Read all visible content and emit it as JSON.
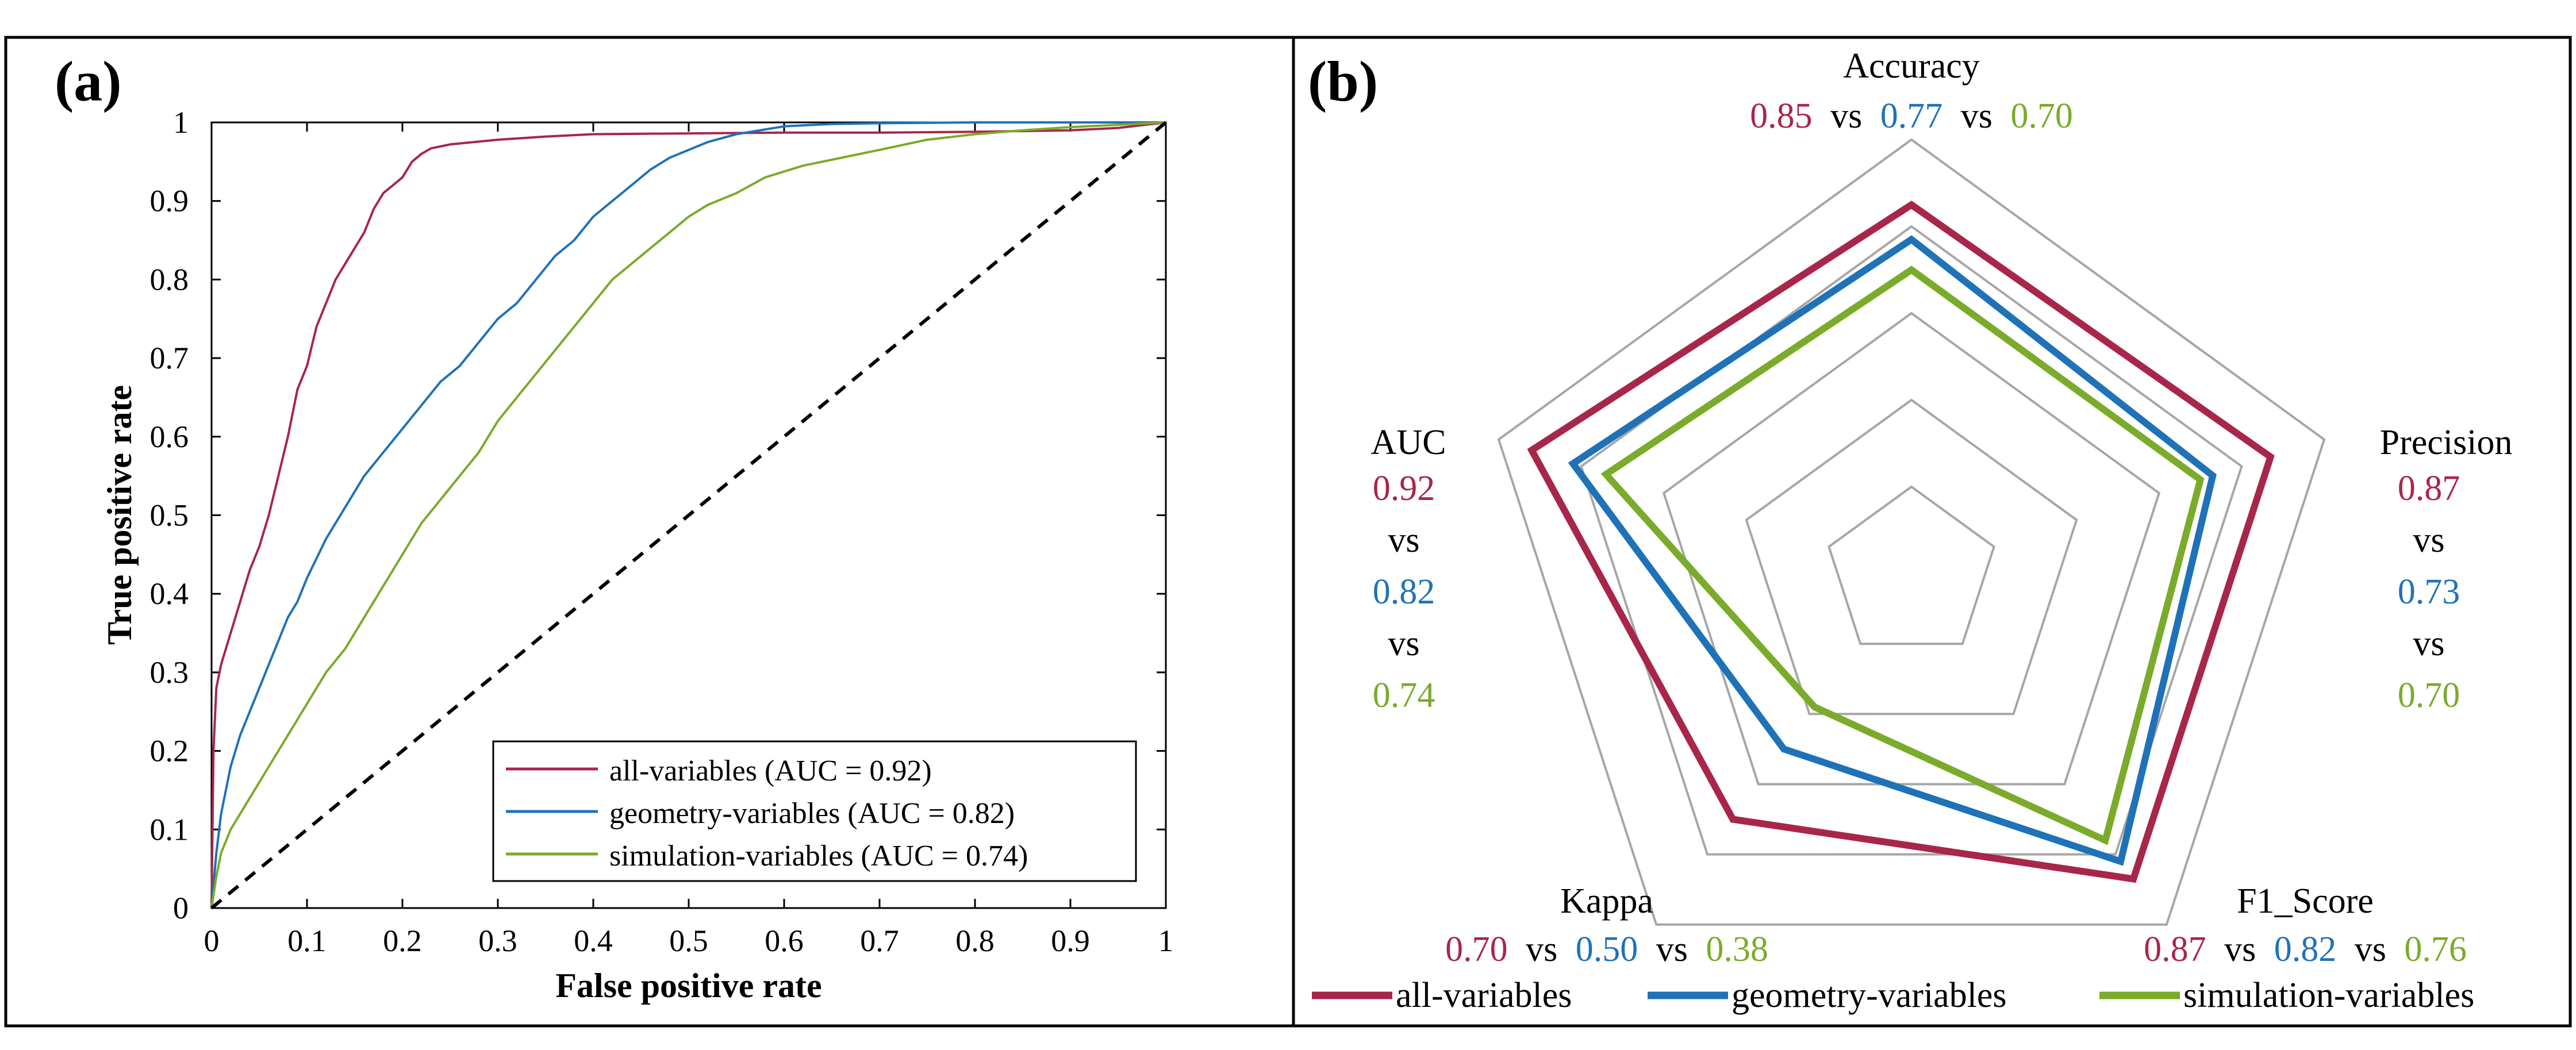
{
  "colors": {
    "all": "#a8264a",
    "geometry": "#1f72b8",
    "simulation": "#7aab2a",
    "diagonal": "#000000",
    "grid": "#a6a6a6"
  },
  "chart_data": [
    {
      "type": "line",
      "panel_label": "(a)",
      "xlabel": "False positive rate",
      "ylabel": "True positive rate",
      "xlim": [
        0,
        1
      ],
      "ylim": [
        0,
        1
      ],
      "x_ticks": [
        "0",
        "0.1",
        "0.2",
        "0.3",
        "0.4",
        "0.5",
        "0.6",
        "0.7",
        "0.8",
        "0.9",
        "1"
      ],
      "y_ticks": [
        "0",
        "0.1",
        "0.2",
        "0.3",
        "0.4",
        "0.5",
        "0.6",
        "0.7",
        "0.8",
        "0.9",
        "1"
      ],
      "legend": "bottom-right",
      "series": [
        {
          "key": "all",
          "name": "all-variables (AUC = 0.92)",
          "x": [
            0,
            0.002,
            0.005,
            0.01,
            0.015,
            0.02,
            0.03,
            0.04,
            0.05,
            0.06,
            0.07,
            0.08,
            0.09,
            0.1,
            0.11,
            0.12,
            0.13,
            0.14,
            0.15,
            0.16,
            0.17,
            0.18,
            0.19,
            0.2,
            0.21,
            0.22,
            0.23,
            0.25,
            0.3,
            0.35,
            0.4,
            0.5,
            0.6,
            0.7,
            0.8,
            0.9,
            0.95,
            1.0
          ],
          "y": [
            0,
            0.2,
            0.28,
            0.31,
            0.33,
            0.35,
            0.39,
            0.43,
            0.46,
            0.5,
            0.55,
            0.6,
            0.66,
            0.69,
            0.74,
            0.77,
            0.8,
            0.82,
            0.84,
            0.86,
            0.89,
            0.91,
            0.92,
            0.93,
            0.95,
            0.96,
            0.967,
            0.972,
            0.978,
            0.982,
            0.985,
            0.986,
            0.987,
            0.987,
            0.988,
            0.99,
            0.993,
            1.0
          ]
        },
        {
          "key": "geometry",
          "name": "geometry-variables (AUC = 0.82)",
          "x": [
            0,
            0.005,
            0.01,
            0.02,
            0.03,
            0.04,
            0.05,
            0.06,
            0.07,
            0.08,
            0.09,
            0.1,
            0.12,
            0.14,
            0.16,
            0.18,
            0.2,
            0.22,
            0.24,
            0.26,
            0.28,
            0.3,
            0.32,
            0.34,
            0.36,
            0.38,
            0.4,
            0.42,
            0.44,
            0.46,
            0.48,
            0.5,
            0.52,
            0.55,
            0.6,
            0.65,
            0.7,
            0.8,
            0.9,
            1.0
          ],
          "y": [
            0,
            0.07,
            0.12,
            0.18,
            0.22,
            0.25,
            0.28,
            0.31,
            0.34,
            0.37,
            0.39,
            0.42,
            0.47,
            0.51,
            0.55,
            0.58,
            0.61,
            0.64,
            0.67,
            0.69,
            0.72,
            0.75,
            0.77,
            0.8,
            0.83,
            0.85,
            0.88,
            0.9,
            0.92,
            0.94,
            0.955,
            0.965,
            0.975,
            0.985,
            0.995,
            0.998,
            0.999,
            1.0,
            1.0,
            1.0
          ]
        },
        {
          "key": "simulation",
          "name": "simulation-variables (AUC = 0.74)",
          "x": [
            0,
            0.005,
            0.01,
            0.02,
            0.03,
            0.04,
            0.05,
            0.06,
            0.08,
            0.1,
            0.12,
            0.14,
            0.16,
            0.18,
            0.2,
            0.22,
            0.24,
            0.26,
            0.28,
            0.3,
            0.32,
            0.34,
            0.36,
            0.38,
            0.4,
            0.42,
            0.44,
            0.46,
            0.48,
            0.5,
            0.52,
            0.55,
            0.58,
            0.62,
            0.66,
            0.7,
            0.75,
            0.8,
            0.85,
            0.9,
            0.95,
            1.0
          ],
          "y": [
            0,
            0.04,
            0.07,
            0.1,
            0.12,
            0.14,
            0.16,
            0.18,
            0.22,
            0.26,
            0.3,
            0.33,
            0.37,
            0.41,
            0.45,
            0.49,
            0.52,
            0.55,
            0.58,
            0.62,
            0.65,
            0.68,
            0.71,
            0.74,
            0.77,
            0.8,
            0.82,
            0.84,
            0.86,
            0.88,
            0.895,
            0.91,
            0.93,
            0.945,
            0.955,
            0.965,
            0.978,
            0.985,
            0.99,
            0.994,
            0.997,
            1.0
          ]
        },
        {
          "key": "diagonal",
          "name": "",
          "x": [
            0,
            1
          ],
          "y": [
            0,
            1
          ]
        }
      ]
    },
    {
      "type": "radar",
      "panel_label": "(b)",
      "axes": [
        "Accuracy",
        "Precision",
        "F1_Score",
        "Kappa",
        "AUC"
      ],
      "ring_levels": [
        0.2,
        0.4,
        0.6,
        0.8,
        1.0
      ],
      "legend": "bottom",
      "vs": "vs",
      "series": [
        {
          "key": "all",
          "name": "all-variables",
          "values": [
            0.85,
            0.87,
            0.87,
            0.7,
            0.92
          ],
          "labels": [
            "0.85",
            "0.87",
            "0.87",
            "0.70",
            "0.92"
          ]
        },
        {
          "key": "geometry",
          "name": "geometry-variables",
          "values": [
            0.77,
            0.73,
            0.82,
            0.5,
            0.82
          ],
          "labels": [
            "0.77",
            "0.73",
            "0.82",
            "0.50",
            "0.82"
          ]
        },
        {
          "key": "simulation",
          "name": "simulation-variables",
          "values": [
            0.7,
            0.7,
            0.76,
            0.38,
            0.74
          ],
          "labels": [
            "0.70",
            "0.70",
            "0.76",
            "0.38",
            "0.74"
          ]
        }
      ]
    }
  ]
}
